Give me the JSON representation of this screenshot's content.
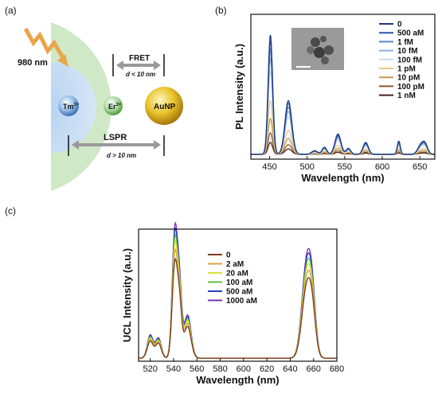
{
  "panels": {
    "a": "(a)",
    "b": "(b)",
    "c": "(c)"
  },
  "diagram_a": {
    "laser": "980 nm",
    "tm": "Tm",
    "tm_sup": "3+",
    "er": "Er",
    "er_sup": "3+",
    "aunp": "AuNP",
    "fret": "FRET",
    "fret_d": "d < 10 nm",
    "lspr": "LSPR",
    "lspr_d": "d > 10 nm"
  },
  "chart_data": [
    {
      "type": "line",
      "panel": "b",
      "xlabel": "Wavelength (nm)",
      "ylabel": "PL Intensity (a.u.)",
      "xlim": [
        425,
        670
      ],
      "xticks": [
        450,
        500,
        550,
        600,
        650
      ],
      "legend_position": "top-right",
      "inset": "TEM image",
      "peaks": [
        {
          "center": 451,
          "width": 3.0,
          "height": 1.0
        },
        {
          "center": 475,
          "width": 4.5,
          "height": 0.45
        },
        {
          "center": 510,
          "width": 4.0,
          "height": 0.03
        },
        {
          "center": 523,
          "width": 3.0,
          "height": 0.06
        },
        {
          "center": 541,
          "width": 4.0,
          "height": 0.17
        },
        {
          "center": 555,
          "width": 3.0,
          "height": 0.05
        },
        {
          "center": 578,
          "width": 3.5,
          "height": 0.1
        },
        {
          "center": 622,
          "width": 2.0,
          "height": 0.11
        },
        {
          "center": 651,
          "width": 4.0,
          "height": 0.07
        },
        {
          "center": 657,
          "width": 3.5,
          "height": 0.08
        }
      ],
      "series": [
        {
          "name": "0",
          "color": "#1f3a7a",
          "scale": 1.0
        },
        {
          "name": "500 aM",
          "color": "#2d56a8",
          "scale": 0.95
        },
        {
          "name": "1 fM",
          "color": "#5c86c8",
          "scale": 0.88
        },
        {
          "name": "10 fM",
          "color": "#8fb0dc",
          "scale": 0.8
        },
        {
          "name": "100 fM",
          "color": "#c7dcec",
          "scale": 0.7
        },
        {
          "name": "1 pM",
          "color": "#e6c98a",
          "scale": 0.45
        },
        {
          "name": "10 pM",
          "color": "#c49a52",
          "scale": 0.3
        },
        {
          "name": "100 pM",
          "color": "#8a5a2b",
          "scale": 0.18
        },
        {
          "name": "1 nM",
          "color": "#4a1e1e",
          "scale": 0.1
        }
      ]
    },
    {
      "type": "line",
      "panel": "c",
      "xlabel": "Wavelength (nm)",
      "ylabel": "UCL Intensity (a.u.)",
      "xlim": [
        510,
        680
      ],
      "xticks": [
        520,
        540,
        560,
        580,
        600,
        620,
        640,
        660,
        680
      ],
      "legend_position": "top-left",
      "peaks": [
        {
          "center": 520,
          "width": 2.5,
          "height": 0.15
        },
        {
          "center": 527,
          "width": 2.5,
          "height": 0.13
        },
        {
          "center": 541,
          "width": 2.2,
          "height": 0.8
        },
        {
          "center": 545,
          "width": 2.0,
          "height": 0.45
        },
        {
          "center": 552,
          "width": 3.0,
          "height": 0.28
        },
        {
          "center": 654,
          "width": 4.0,
          "height": 0.6
        },
        {
          "center": 659,
          "width": 3.0,
          "height": 0.3
        }
      ],
      "series": [
        {
          "name": "0",
          "color": "#7a3a1c",
          "scale": 0.75
        },
        {
          "name": "2 aM",
          "color": "#d9a13a",
          "scale": 0.82
        },
        {
          "name": "20 aM",
          "color": "#d8e33a",
          "scale": 0.88
        },
        {
          "name": "100 aM",
          "color": "#5cbf3a",
          "scale": 0.93
        },
        {
          "name": "500 aM",
          "color": "#2a3cc8",
          "scale": 0.98
        },
        {
          "name": "1000 aM",
          "color": "#7a2fb0",
          "scale": 1.02
        }
      ]
    }
  ]
}
